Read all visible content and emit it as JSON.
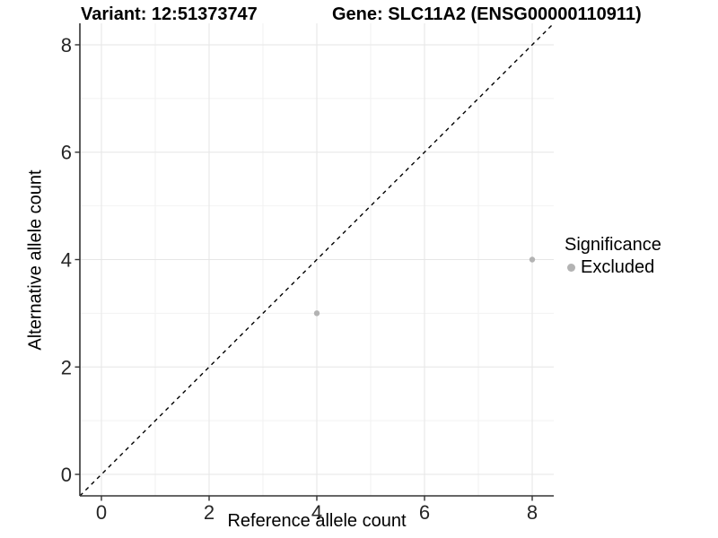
{
  "chart_data": {
    "type": "scatter",
    "title_left": "Variant: 12:51373747",
    "title_right": "Gene: SLC11A2 (ENSG00000110911)",
    "xlabel": "Reference allele count",
    "ylabel": "Alternative allele count",
    "xlim": [
      -0.4,
      8.4
    ],
    "ylim": [
      -0.4,
      8.4
    ],
    "xticks": [
      0,
      2,
      4,
      6,
      8
    ],
    "yticks": [
      0,
      2,
      4,
      6,
      8
    ],
    "xticks_minor": [
      1,
      3,
      5,
      7
    ],
    "yticks_minor": [
      1,
      3,
      5,
      7
    ],
    "grid": true,
    "identity_line": {
      "style": "dashed",
      "from": [
        -0.4,
        -0.4
      ],
      "to": [
        8.4,
        8.4
      ]
    },
    "series": [
      {
        "name": "Excluded",
        "points": [
          [
            4,
            3
          ],
          [
            8,
            4
          ]
        ],
        "point_radius": 3.2
      }
    ],
    "legend": {
      "title": "Significance",
      "position": "right",
      "items": [
        {
          "label": "Excluded",
          "color": "#b3b3b3"
        }
      ]
    },
    "colors": {
      "point": "#b3b3b3",
      "grid_major": "#e6e6e6",
      "grid_minor": "#f2f2f2",
      "axis_line": "#333333",
      "tick_mark": "#333333",
      "tick_label": "#262626",
      "identity_line": "#000000",
      "background": "#ffffff"
    }
  }
}
